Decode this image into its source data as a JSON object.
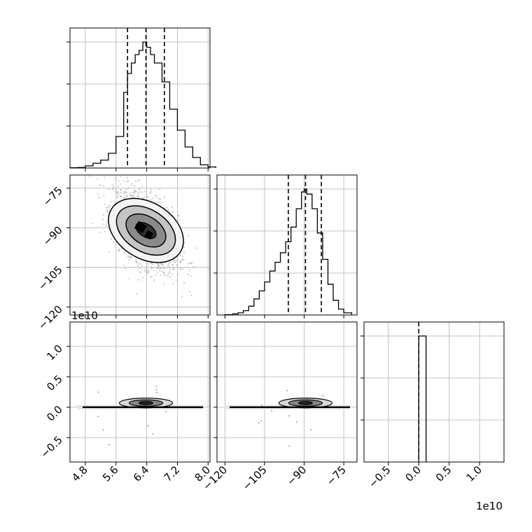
{
  "chart_data": {
    "type": "corner",
    "grid": true,
    "parameters": [
      {
        "range": [
          4.4,
          8.05
        ],
        "ticks": [
          4.8,
          5.6,
          6.4,
          7.2,
          8.0
        ],
        "tick_labels": [
          "4.8",
          "5.6",
          "6.4",
          "7.2",
          "8.0"
        ],
        "quantiles": [
          5.9,
          6.38,
          6.86
        ],
        "hist_bins": [
          4.4,
          4.6,
          4.8,
          5.0,
          5.2,
          5.4,
          5.6,
          5.8,
          5.9,
          6.0,
          6.1,
          6.2,
          6.3,
          6.4,
          6.5,
          6.6,
          6.8,
          7.0,
          7.2,
          7.4,
          7.6,
          7.8,
          8.0
        ],
        "hist_counts": [
          0.2,
          0.5,
          2.0,
          4.5,
          7.5,
          14,
          30,
          72,
          90,
          100,
          108,
          112,
          120,
          115,
          108,
          100,
          82,
          56,
          36,
          20,
          10,
          3,
          1
        ]
      },
      {
        "range": [
          -123,
          -70
        ],
        "ticks": [
          -120,
          -105,
          -90,
          -75
        ],
        "tick_labels": [
          "−120",
          "−105",
          "−90",
          "−75"
        ],
        "quantiles": [
          -96,
          -89.5,
          -83.5
        ],
        "hist_bins": [
          -120,
          -117,
          -115,
          -113,
          -111,
          -109,
          -107,
          -105,
          -103,
          -101,
          -99,
          -97,
          -95,
          -93,
          -91,
          -90,
          -89,
          -87,
          -85,
          -83,
          -81,
          -79,
          -77,
          -75
        ],
        "hist_counts": [
          0.5,
          1.5,
          3,
          6,
          12,
          22,
          33,
          45,
          60,
          72,
          85,
          100,
          120,
          145,
          168,
          172,
          165,
          145,
          112,
          76,
          42,
          20,
          8,
          3
        ]
      },
      {
        "range": [
          -9000000000.0,
          14000000000.0
        ],
        "ticks": [
          -5000000000.0,
          0,
          5000000000.0,
          10000000000.0
        ],
        "tick_labels": [
          "−0.5",
          "0.0",
          "0.5",
          "1.0"
        ],
        "offset_text": "1e10",
        "quantiles": [
          0
        ],
        "hist_bins": [
          0,
          1200000000.0
        ],
        "hist_counts": [
          1
        ]
      }
    ],
    "contour_levels": 4
  }
}
